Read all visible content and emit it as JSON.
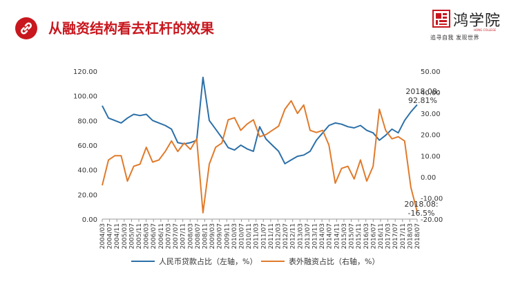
{
  "header": {
    "title": "从融资结构看去杠杆的效果",
    "link_icon": "link-icon"
  },
  "logo": {
    "name": "鸿学院",
    "english": "HONG COLLEGE",
    "tagline": "追寻自我  发现世界"
  },
  "colors": {
    "brand": "#c8171e",
    "series_blue": "#2b6fa8",
    "series_orange": "#e07a2a"
  },
  "chart_data": {
    "type": "line",
    "x_tick_labels": [
      "2004/03",
      "2004/07",
      "2004/11",
      "2005/03",
      "2005/07",
      "2005/11",
      "2006/03",
      "2006/07",
      "2006/11",
      "2007/03",
      "2007/07",
      "2007/11",
      "2008/03",
      "2008/07",
      "2008/11",
      "2009/03",
      "2009/07",
      "2009/11",
      "2010/03",
      "2010/07",
      "2010/11",
      "2011/03",
      "2011/07",
      "2011/11",
      "2012/03",
      "2012/07",
      "2012/11",
      "2013/03",
      "2013/07",
      "2013/11",
      "2014/03",
      "2014/07",
      "2014/11",
      "2015/03",
      "2015/07",
      "2015/11",
      "2016/03",
      "2016/07",
      "2016/11",
      "2017/03",
      "2017/07",
      "2017/11",
      "2018/03",
      "2018/07"
    ],
    "y_left": {
      "min": 0,
      "max": 120,
      "ticks": [
        "0.00",
        "20.00",
        "40.00",
        "60.00",
        "80.00",
        "100.00",
        "120.00"
      ]
    },
    "y_right": {
      "min": -20,
      "max": 50,
      "ticks": [
        "-20.00",
        "-10.00",
        "0.00",
        "10.00",
        "20.00",
        "30.00",
        "40.00",
        "50.00"
      ]
    },
    "series": [
      {
        "name": "人民币贷款占比（左轴，%）",
        "axis": "left",
        "values": [
          92,
          82,
          80,
          78,
          82,
          85,
          84,
          85,
          80,
          78,
          76,
          73,
          62,
          61,
          62,
          64,
          115,
          80,
          73,
          66,
          58,
          56,
          60,
          57,
          55,
          75,
          65,
          60,
          55,
          45,
          48,
          51,
          52,
          55,
          64,
          70,
          76,
          78,
          77,
          75,
          74,
          76,
          72,
          70,
          64,
          68,
          73,
          70,
          80,
          87,
          92.81
        ]
      },
      {
        "name": "表外融资占比（右轴，%）",
        "axis": "right",
        "values": [
          -4,
          8,
          10,
          10,
          -2,
          5,
          6,
          14,
          7,
          8,
          12,
          17,
          12,
          16,
          13,
          18,
          -17,
          6,
          14,
          16,
          27,
          28,
          22,
          25,
          27,
          19,
          20,
          22,
          24,
          32,
          36,
          30,
          34,
          22,
          21,
          22,
          15,
          -3,
          4,
          5,
          -1,
          8,
          -2,
          5,
          32,
          22,
          18,
          19,
          17,
          -5,
          -16.5
        ]
      }
    ],
    "grid": false,
    "legend": "bottom"
  },
  "annotations": {
    "blue_last": {
      "date": "2018.08:",
      "value": "92.81%"
    },
    "orange_last": {
      "date": "2018.08:",
      "value": "-16.5%"
    }
  }
}
